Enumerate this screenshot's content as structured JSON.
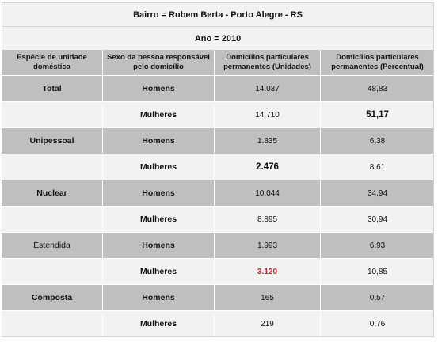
{
  "title": "Bairro = Rubem Berta - Porto Alegre - RS",
  "subtitle": "Ano = 2010",
  "headers": {
    "col1": "Espécie de unidade doméstica",
    "col2": "Sexo da pessoa responsável pelo domicílio",
    "col3": "Domicílios particulares permanentes (Unidades)",
    "col4": "Domicílios particulares permanentes (Percentual)"
  },
  "rows": [
    {
      "especie": "Total",
      "sexo": "Homens",
      "unidades": "14.037",
      "percentual": "48,83"
    },
    {
      "especie": "",
      "sexo": "Mulheres",
      "unidades": "14.710",
      "percentual": "51,17"
    },
    {
      "especie": "Unipessoal",
      "sexo": "Homens",
      "unidades": "1.835",
      "percentual": "6,38"
    },
    {
      "especie": "",
      "sexo": "Mulheres",
      "unidades": "2.476",
      "percentual": "8,61"
    },
    {
      "especie": "Nuclear",
      "sexo": "Homens",
      "unidades": "10.044",
      "percentual": "34,94"
    },
    {
      "especie": "",
      "sexo": "Mulheres",
      "unidades": "8.895",
      "percentual": "30,94"
    },
    {
      "especie": "Estendida",
      "sexo": "Homens",
      "unidades": "1.993",
      "percentual": "6,93"
    },
    {
      "especie": "",
      "sexo": "Mulheres",
      "unidades": "3.120",
      "percentual": "10,85"
    },
    {
      "especie": "Composta",
      "sexo": "Homens",
      "unidades": "165",
      "percentual": "0,57"
    },
    {
      "especie": "",
      "sexo": "Mulheres",
      "unidades": "219",
      "percentual": "0,76"
    }
  ],
  "colors": {
    "header_gray": "#bfbfbf",
    "light_gray": "#f2f2f2",
    "highlight_red": "#e02020"
  }
}
